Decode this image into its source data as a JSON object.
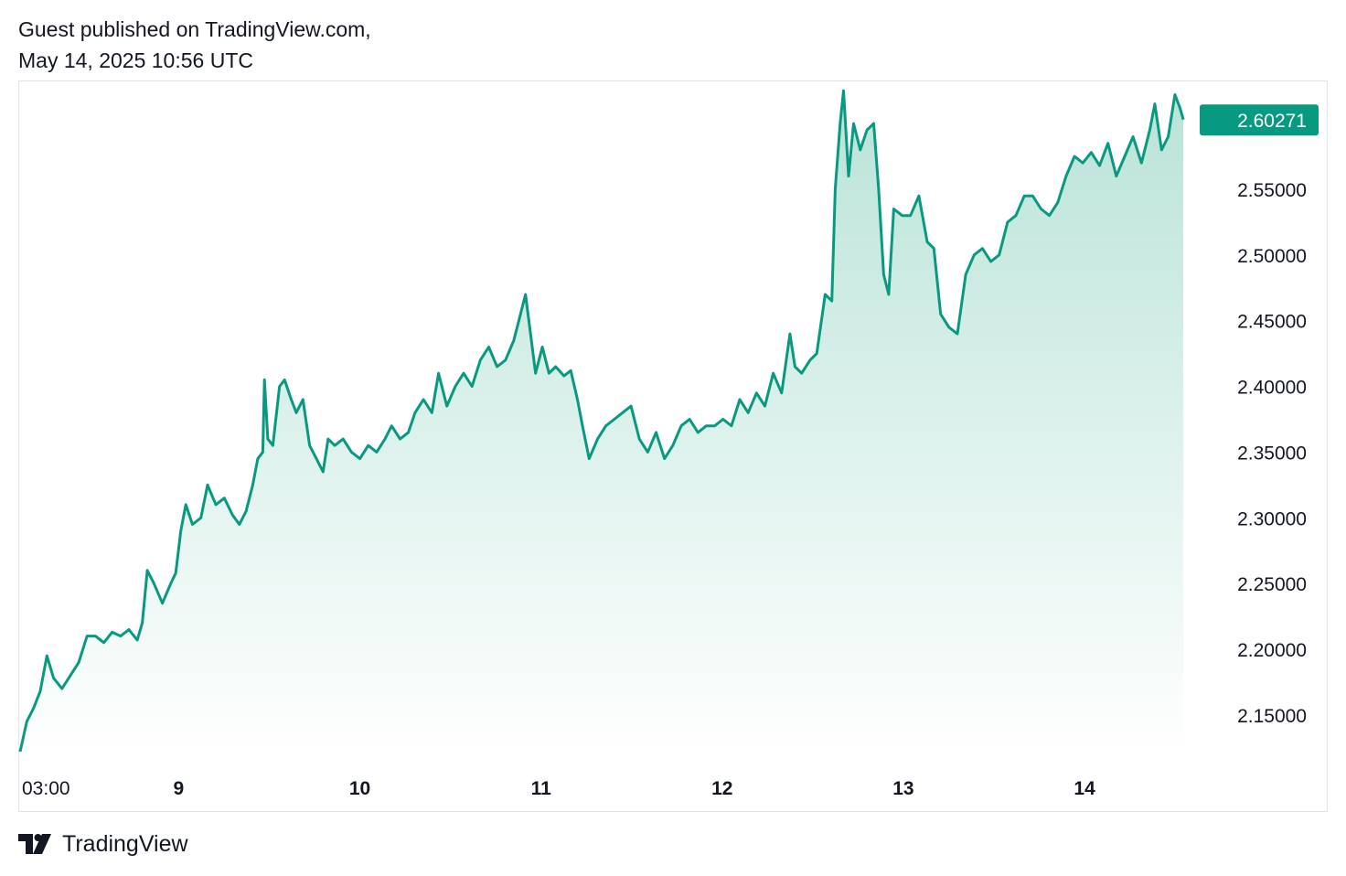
{
  "header": {
    "published_line": "Guest published on TradingView.com,",
    "date_line": "May 14, 2025 10:56 UTC"
  },
  "footer": {
    "logo_icon": "tradingview-logo-icon",
    "brand": "TradingView"
  },
  "colors": {
    "line": "#089981",
    "area_top": "#b9e3d8",
    "area_bottom": "#ffffff",
    "label_bg": "#089981"
  },
  "chart_data": {
    "type": "area",
    "grid": false,
    "last_value": 2.60271,
    "last_value_label": "2.60271",
    "ylim": [
      2.12,
      2.63
    ],
    "y_ticks": [
      "2.15000",
      "2.20000",
      "2.25000",
      "2.30000",
      "2.35000",
      "2.40000",
      "2.45000",
      "2.50000",
      "2.55000"
    ],
    "x_ticks": [
      {
        "label": "03:00",
        "pos": 0.0,
        "bold": false
      },
      {
        "label": "9",
        "pos": 0.875,
        "bold": true
      },
      {
        "label": "10",
        "pos": 1.875,
        "bold": true
      },
      {
        "label": "11",
        "pos": 2.875,
        "bold": true
      },
      {
        "label": "12",
        "pos": 3.875,
        "bold": true
      },
      {
        "label": "13",
        "pos": 4.875,
        "bold": true
      },
      {
        "label": "14",
        "pos": 5.875,
        "bold": true
      }
    ],
    "x_range": [
      0,
      6.45
    ],
    "series": [
      {
        "values": [
          [
            0.0,
            2.122
          ],
          [
            0.04,
            2.145
          ],
          [
            0.08,
            2.155
          ],
          [
            0.12,
            2.168
          ],
          [
            0.16,
            2.195
          ],
          [
            0.2,
            2.178
          ],
          [
            0.25,
            2.17
          ],
          [
            0.3,
            2.18
          ],
          [
            0.35,
            2.19
          ],
          [
            0.4,
            2.21
          ],
          [
            0.45,
            2.21
          ],
          [
            0.5,
            2.205
          ],
          [
            0.55,
            2.213
          ],
          [
            0.6,
            2.21
          ],
          [
            0.65,
            2.215
          ],
          [
            0.7,
            2.207
          ],
          [
            0.73,
            2.22
          ],
          [
            0.76,
            2.26
          ],
          [
            0.8,
            2.25
          ],
          [
            0.85,
            2.235
          ],
          [
            0.9,
            2.25
          ],
          [
            0.93,
            2.258
          ],
          [
            0.96,
            2.29
          ],
          [
            0.99,
            2.31
          ],
          [
            1.03,
            2.295
          ],
          [
            1.08,
            2.3
          ],
          [
            1.12,
            2.325
          ],
          [
            1.17,
            2.31
          ],
          [
            1.22,
            2.315
          ],
          [
            1.27,
            2.302
          ],
          [
            1.31,
            2.295
          ],
          [
            1.35,
            2.305
          ],
          [
            1.39,
            2.325
          ],
          [
            1.42,
            2.345
          ],
          [
            1.45,
            2.35
          ],
          [
            1.46,
            2.405
          ],
          [
            1.48,
            2.36
          ],
          [
            1.51,
            2.355
          ],
          [
            1.55,
            2.4
          ],
          [
            1.58,
            2.405
          ],
          [
            1.62,
            2.39
          ],
          [
            1.65,
            2.38
          ],
          [
            1.69,
            2.39
          ],
          [
            1.73,
            2.355
          ],
          [
            1.77,
            2.345
          ],
          [
            1.81,
            2.335
          ],
          [
            1.84,
            2.36
          ],
          [
            1.88,
            2.355
          ],
          [
            1.93,
            2.36
          ],
          [
            1.98,
            2.35
          ],
          [
            2.03,
            2.345
          ],
          [
            2.08,
            2.355
          ],
          [
            2.13,
            2.35
          ],
          [
            2.18,
            2.36
          ],
          [
            2.22,
            2.37
          ],
          [
            2.27,
            2.36
          ],
          [
            2.32,
            2.365
          ],
          [
            2.36,
            2.38
          ],
          [
            2.41,
            2.39
          ],
          [
            2.46,
            2.38
          ],
          [
            2.5,
            2.41
          ],
          [
            2.55,
            2.385
          ],
          [
            2.6,
            2.4
          ],
          [
            2.65,
            2.41
          ],
          [
            2.7,
            2.4
          ],
          [
            2.75,
            2.42
          ],
          [
            2.8,
            2.43
          ],
          [
            2.85,
            2.415
          ],
          [
            2.9,
            2.42
          ],
          [
            2.95,
            2.435
          ],
          [
            3.02,
            2.47
          ],
          [
            3.05,
            2.44
          ],
          [
            3.08,
            2.41
          ],
          [
            3.12,
            2.43
          ],
          [
            3.16,
            2.41
          ],
          [
            3.2,
            2.415
          ],
          [
            3.25,
            2.408
          ],
          [
            3.29,
            2.412
          ],
          [
            3.33,
            2.39
          ],
          [
            3.36,
            2.37
          ],
          [
            3.4,
            2.345
          ],
          [
            3.45,
            2.36
          ],
          [
            3.5,
            2.37
          ],
          [
            3.55,
            2.375
          ],
          [
            3.6,
            2.38
          ],
          [
            3.65,
            2.385
          ],
          [
            3.7,
            2.36
          ],
          [
            3.75,
            2.35
          ],
          [
            3.8,
            2.365
          ],
          [
            3.85,
            2.345
          ],
          [
            3.9,
            2.355
          ],
          [
            3.95,
            2.37
          ],
          [
            4.0,
            2.375
          ],
          [
            4.05,
            2.365
          ],
          [
            4.1,
            2.37
          ],
          [
            4.15,
            2.37
          ],
          [
            4.2,
            2.375
          ],
          [
            4.25,
            2.37
          ],
          [
            4.3,
            2.39
          ],
          [
            4.35,
            2.38
          ],
          [
            4.4,
            2.395
          ],
          [
            4.45,
            2.385
          ],
          [
            4.5,
            2.41
          ],
          [
            4.55,
            2.395
          ],
          [
            4.6,
            2.44
          ],
          [
            4.63,
            2.415
          ],
          [
            4.67,
            2.41
          ],
          [
            4.72,
            2.42
          ],
          [
            4.76,
            2.425
          ],
          [
            4.81,
            2.47
          ],
          [
            4.85,
            2.465
          ],
          [
            4.87,
            2.55
          ],
          [
            4.9,
            2.6
          ],
          [
            4.92,
            2.625
          ],
          [
            4.95,
            2.56
          ],
          [
            4.98,
            2.6
          ],
          [
            5.02,
            2.58
          ],
          [
            5.06,
            2.595
          ],
          [
            5.1,
            2.6
          ],
          [
            5.13,
            2.55
          ],
          [
            5.16,
            2.485
          ],
          [
            5.19,
            2.47
          ],
          [
            5.22,
            2.535
          ],
          [
            5.27,
            2.53
          ],
          [
            5.32,
            2.53
          ],
          [
            5.37,
            2.545
          ],
          [
            5.42,
            2.51
          ],
          [
            5.46,
            2.505
          ],
          [
            5.5,
            2.455
          ],
          [
            5.55,
            2.445
          ],
          [
            5.6,
            2.44
          ],
          [
            5.65,
            2.485
          ],
          [
            5.7,
            2.5
          ],
          [
            5.75,
            2.505
          ],
          [
            5.8,
            2.495
          ],
          [
            5.85,
            2.5
          ],
          [
            5.9,
            2.525
          ],
          [
            5.95,
            2.53
          ],
          [
            6.0,
            2.545
          ],
          [
            6.05,
            2.545
          ],
          [
            6.1,
            2.535
          ],
          [
            6.15,
            2.53
          ],
          [
            6.2,
            2.54
          ],
          [
            6.25,
            2.56
          ],
          [
            6.3,
            2.575
          ],
          [
            6.35,
            2.57
          ],
          [
            6.4,
            2.578
          ],
          [
            6.45,
            2.568
          ],
          [
            6.5,
            2.585
          ],
          [
            6.55,
            2.56
          ],
          [
            6.6,
            2.575
          ],
          [
            6.65,
            2.59
          ],
          [
            6.7,
            2.57
          ],
          [
            6.75,
            2.595
          ],
          [
            6.78,
            2.615
          ],
          [
            6.82,
            2.58
          ],
          [
            6.86,
            2.59
          ],
          [
            6.9,
            2.622
          ],
          [
            6.93,
            2.612
          ],
          [
            6.95,
            2.603
          ]
        ]
      }
    ]
  }
}
